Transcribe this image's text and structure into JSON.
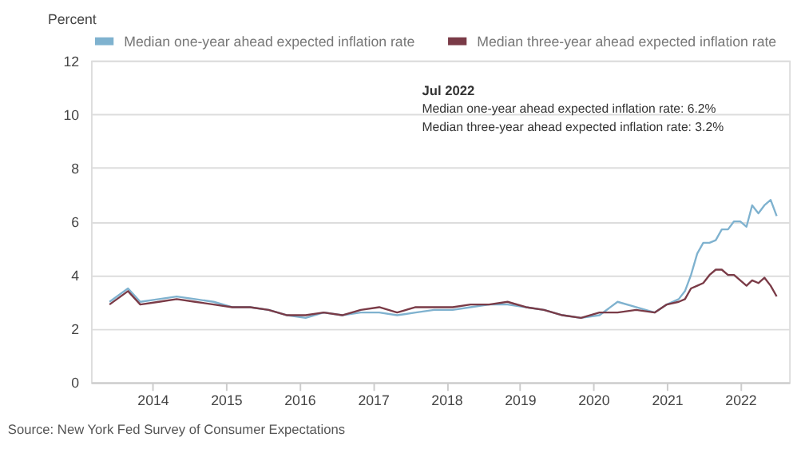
{
  "chart_data": {
    "type": "line",
    "ylabel": "Percent",
    "x": [
      "2013-06",
      "2013-09",
      "2013-11",
      "2014-02",
      "2014-05",
      "2014-08",
      "2014-11",
      "2015-02",
      "2015-05",
      "2015-08",
      "2015-11",
      "2016-02",
      "2016-05",
      "2016-08",
      "2016-11",
      "2017-02",
      "2017-05",
      "2017-08",
      "2017-11",
      "2018-02",
      "2018-05",
      "2018-08",
      "2018-11",
      "2019-02",
      "2019-05",
      "2019-08",
      "2019-11",
      "2020-02",
      "2020-05",
      "2020-08",
      "2020-11",
      "2021-01",
      "2021-03",
      "2021-04",
      "2021-05",
      "2021-06",
      "2021-07",
      "2021-08",
      "2021-09",
      "2021-10",
      "2021-11",
      "2021-12",
      "2022-01",
      "2022-02",
      "2022-03",
      "2022-04",
      "2022-05",
      "2022-06",
      "2022-07"
    ],
    "series": [
      {
        "name": "Median one-year ahead expected inflation rate",
        "color": "#7fb2cf",
        "values": [
          3.0,
          3.5,
          3.0,
          3.1,
          3.2,
          3.1,
          3.0,
          2.8,
          2.8,
          2.7,
          2.5,
          2.4,
          2.6,
          2.5,
          2.6,
          2.6,
          2.5,
          2.6,
          2.7,
          2.7,
          2.8,
          2.9,
          2.9,
          2.8,
          2.7,
          2.5,
          2.4,
          2.5,
          3.0,
          2.8,
          2.6,
          2.9,
          3.1,
          3.4,
          4.0,
          4.8,
          5.2,
          5.2,
          5.3,
          5.7,
          5.7,
          6.0,
          6.0,
          5.8,
          6.6,
          6.3,
          6.6,
          6.8,
          6.2
        ]
      },
      {
        "name": "Median three-year ahead expected inflation rate",
        "color": "#7a3b47",
        "values": [
          2.9,
          3.4,
          2.9,
          3.0,
          3.1,
          3.0,
          2.9,
          2.8,
          2.8,
          2.7,
          2.5,
          2.5,
          2.6,
          2.5,
          2.7,
          2.8,
          2.6,
          2.8,
          2.8,
          2.8,
          2.9,
          2.9,
          3.0,
          2.8,
          2.7,
          2.5,
          2.4,
          2.6,
          2.6,
          2.7,
          2.6,
          2.9,
          3.0,
          3.1,
          3.5,
          3.6,
          3.7,
          4.0,
          4.2,
          4.2,
          4.0,
          4.0,
          3.8,
          3.6,
          3.8,
          3.7,
          3.9,
          3.6,
          3.2
        ]
      }
    ],
    "xlim": [
      "2013-03",
      "2022-09"
    ],
    "xticks": [
      "2014",
      "2015",
      "2016",
      "2017",
      "2018",
      "2019",
      "2020",
      "2021",
      "2022"
    ],
    "ylim": [
      0,
      12
    ],
    "yticks": [
      0,
      2,
      4,
      6,
      8,
      10,
      12
    ],
    "grid": "y",
    "legend": "top right",
    "annotations": [
      "Jul 2022",
      "Median one-year ahead expected inflation rate: 6.2%",
      "Median three-year ahead expected inflation rate: 3.2%",
      "Source: New York Fed Survey of Consumer Expectations"
    ]
  }
}
